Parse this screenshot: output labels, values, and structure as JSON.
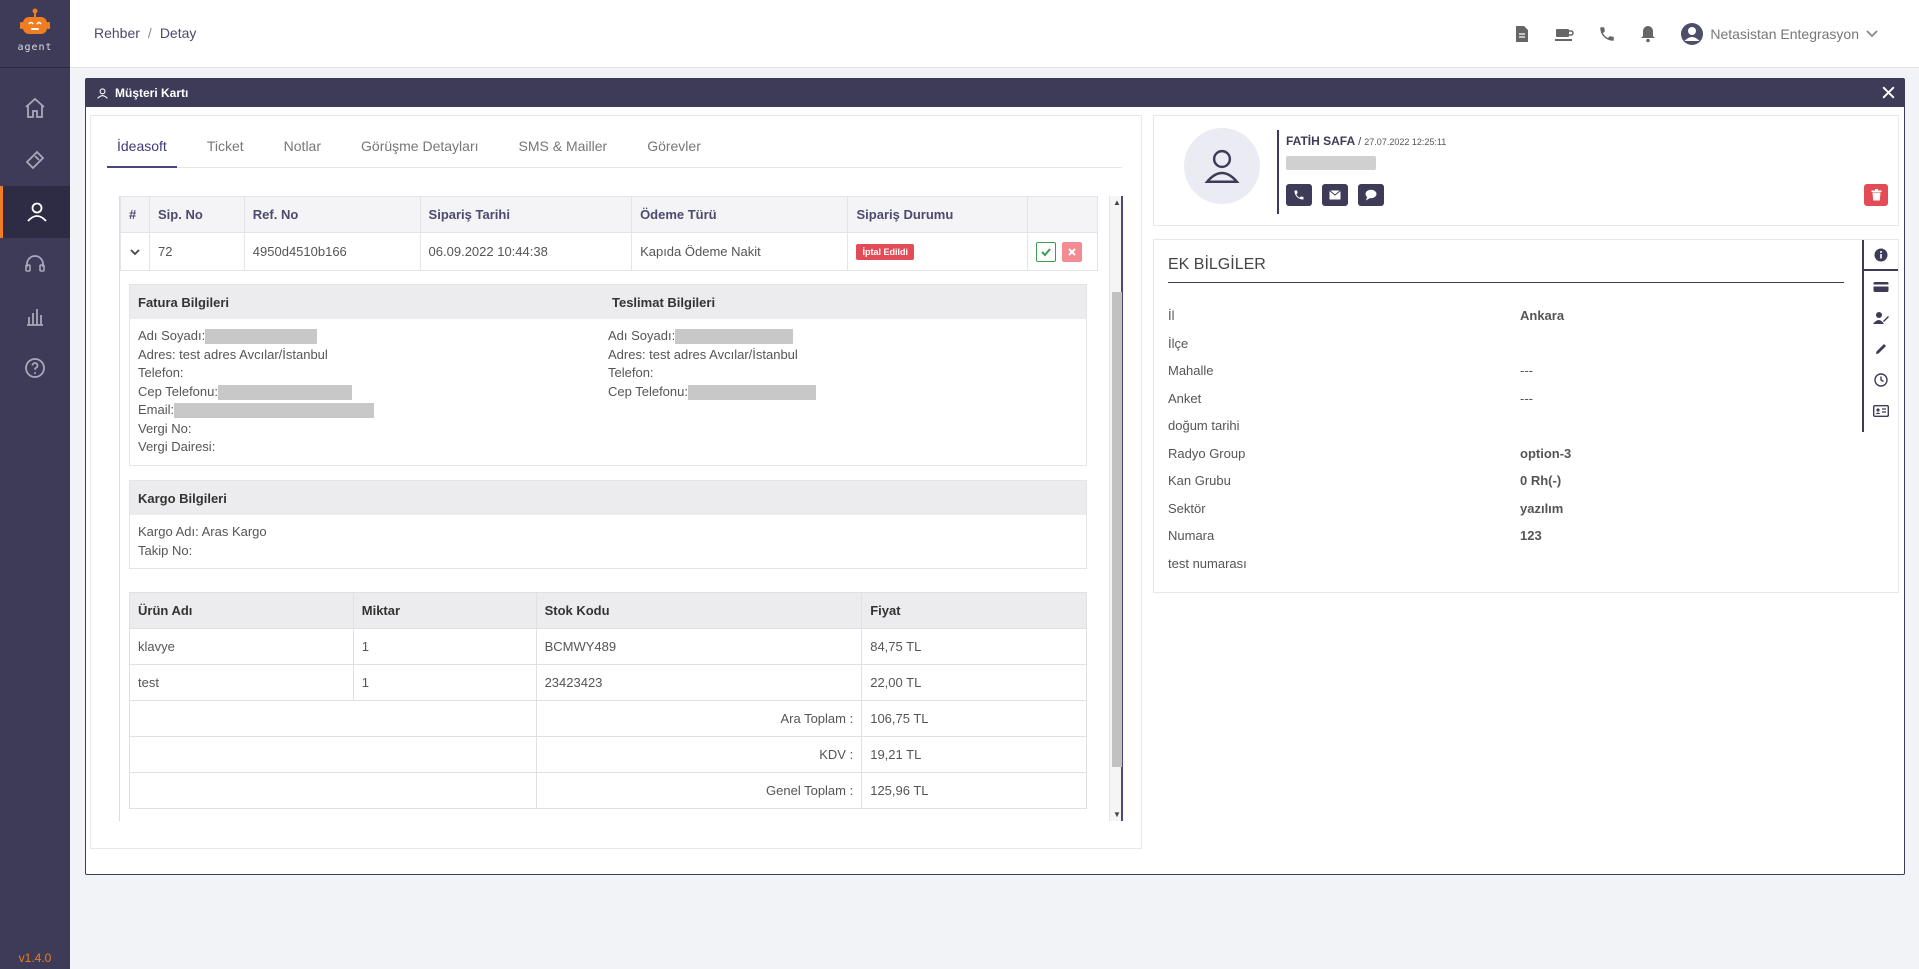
{
  "app": {
    "logo_text": "agent",
    "version": "v1.4.0"
  },
  "sidebar": {
    "items": [
      {
        "name": "home-icon"
      },
      {
        "name": "ticket-icon"
      },
      {
        "name": "contacts-icon"
      },
      {
        "name": "headset-icon"
      },
      {
        "name": "chart-icon"
      },
      {
        "name": "help-icon"
      }
    ],
    "active_index": 2
  },
  "header": {
    "breadcrumb": [
      "Rehber",
      "Detay"
    ],
    "breadcrumb_sep": "/",
    "user_name": "Netasistan Entegrasyon"
  },
  "modal": {
    "title": "Müşteri Kartı"
  },
  "tabs": [
    "İdeasoft",
    "Ticket",
    "Notlar",
    "Görüşme Detayları",
    "SMS & Mailler",
    "Görevler"
  ],
  "orders": {
    "headers": [
      "#",
      "Sip. No",
      "Ref. No",
      "Sipariş Tarihi",
      "Ödeme Türü",
      "Sipariş Durumu"
    ],
    "row": {
      "sip_no": "72",
      "ref_no": "4950d4510b166",
      "date": "06.09.2022 10:44:38",
      "payment": "Kapıda Ödeme Nakit",
      "status": "İptal Edildi"
    }
  },
  "invoice": {
    "title": "Fatura Bilgileri",
    "name_label": "Adı Soyadı:",
    "address": "Adres: test adres Avcılar/İstanbul",
    "phone_label": "Telefon:",
    "mobile_label": "Cep Telefonu:",
    "email_label": "Email:",
    "tax_no_label": "Vergi No:",
    "tax_office_label": "Vergi Dairesi:"
  },
  "delivery": {
    "title": "Teslimat Bilgileri",
    "name_label": "Adı Soyadı:",
    "address": "Adres: test adres Avcılar/İstanbul",
    "phone_label": "Telefon:",
    "mobile_label": "Cep Telefonu:"
  },
  "cargo": {
    "title": "Kargo Bilgileri",
    "name": "Kargo Adı: Aras Kargo",
    "tracking_label": "Takip No:"
  },
  "products": {
    "headers": [
      "Ürün Adı",
      "Miktar",
      "Stok Kodu",
      "Fiyat"
    ],
    "rows": [
      {
        "name": "klavye",
        "qty": "1",
        "code": "BCMWY489",
        "price": "84,75 TL"
      },
      {
        "name": "test",
        "qty": "1",
        "code": "23423423",
        "price": "22,00 TL"
      }
    ],
    "totals": [
      {
        "label": "Ara Toplam :",
        "value": "106,75 TL"
      },
      {
        "label": "KDV :",
        "value": "19,21 TL"
      },
      {
        "label": "Genel Toplam :",
        "value": "125,96 TL"
      }
    ]
  },
  "profile": {
    "name": "FATİH SAFA",
    "separator": " / ",
    "date": "27.07.2022 12:25:11"
  },
  "extra": {
    "title": "EK BİLGİLER",
    "fields": [
      {
        "label": "İl",
        "value": "Ankara"
      },
      {
        "label": "İlçe",
        "value": ""
      },
      {
        "label": "Mahalle",
        "value": "---"
      },
      {
        "label": "Anket",
        "value": "---"
      },
      {
        "label": "doğum tarihi",
        "value": ""
      },
      {
        "label": "Radyo Group",
        "value": "option-3"
      },
      {
        "label": "Kan Grubu",
        "value": "0 Rh(-)"
      },
      {
        "label": "Sektör",
        "value": "yazılım"
      },
      {
        "label": "Numara",
        "value": "123"
      },
      {
        "label": "test numarası",
        "value": ""
      }
    ]
  },
  "colors": {
    "primary": "#3d3b57",
    "accent": "#f07d22",
    "danger": "#e34b57",
    "success": "#3c9c54"
  }
}
